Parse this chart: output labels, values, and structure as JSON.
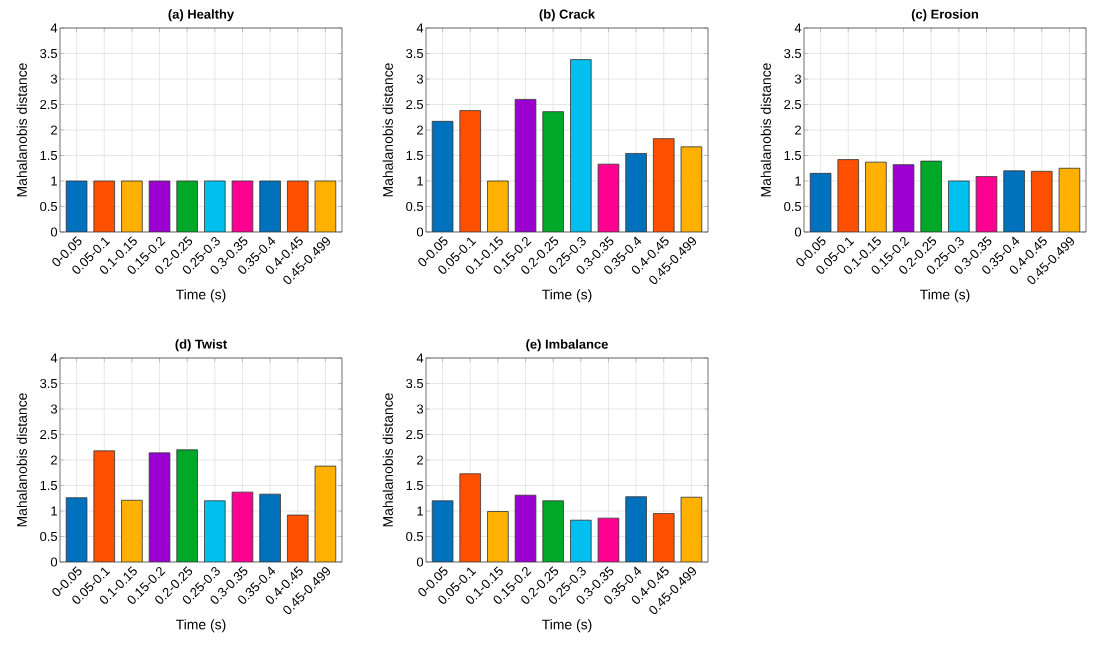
{
  "chart_data": [
    {
      "type": "bar",
      "title": "(a) Healthy",
      "xlabel": "Time (s)",
      "ylabel": "Mahalanobis distance",
      "categories": [
        "0-0.05",
        "0.05-0.1",
        "0.1-0.15",
        "0.15-0.2",
        "0.2-0.25",
        "0.25-0.3",
        "0.3-0.35",
        "0.35-0.4",
        "0.4-0.45",
        "0.45-0.499"
      ],
      "values": [
        1,
        1,
        1,
        1,
        1,
        1,
        1,
        1,
        1,
        1
      ],
      "colors": [
        "#0072bd",
        "#ff5000",
        "#ffb000",
        "#9b00d0",
        "#00a82a",
        "#00c0f0",
        "#ff0090",
        "#0072bd",
        "#ff5000",
        "#ffb000"
      ],
      "ylim": [
        0,
        4
      ],
      "yticks": [
        0,
        0.5,
        1,
        1.5,
        2,
        2.5,
        3,
        3.5,
        4
      ],
      "grid": true
    },
    {
      "type": "bar",
      "title": "(b) Crack",
      "xlabel": "Time (s)",
      "ylabel": "Mahalanobis distance",
      "categories": [
        "0-0.05",
        "0.05-0.1",
        "0.1-0.15",
        "0.15-0.2",
        "0.2-0.25",
        "0.25-0.3",
        "0.3-0.35",
        "0.35-0.4",
        "0.4-0.45",
        "0.45-0.499"
      ],
      "values": [
        2.17,
        2.38,
        1.0,
        2.6,
        2.36,
        3.38,
        1.33,
        1.54,
        1.83,
        1.67
      ],
      "colors": [
        "#0072bd",
        "#ff5000",
        "#ffb000",
        "#9b00d0",
        "#00a82a",
        "#00c0f0",
        "#ff0090",
        "#0072bd",
        "#ff5000",
        "#ffb000"
      ],
      "ylim": [
        0,
        4
      ],
      "yticks": [
        0,
        0.5,
        1,
        1.5,
        2,
        2.5,
        3,
        3.5,
        4
      ],
      "grid": true
    },
    {
      "type": "bar",
      "title": "(c) Erosion",
      "xlabel": "Time (s)",
      "ylabel": "Mahalanobis distance",
      "categories": [
        "0-0.05",
        "0.05-0.1",
        "0.1-0.15",
        "0.15-0.2",
        "0.2-0.25",
        "0.25-0.3",
        "0.3-0.35",
        "0.35-0.4",
        "0.4-0.45",
        "0.45-0.499"
      ],
      "values": [
        1.15,
        1.42,
        1.37,
        1.32,
        1.39,
        1.0,
        1.09,
        1.2,
        1.19,
        1.25
      ],
      "colors": [
        "#0072bd",
        "#ff5000",
        "#ffb000",
        "#9b00d0",
        "#00a82a",
        "#00c0f0",
        "#ff0090",
        "#0072bd",
        "#ff5000",
        "#ffb000"
      ],
      "ylim": [
        0,
        4
      ],
      "yticks": [
        0,
        0.5,
        1,
        1.5,
        2,
        2.5,
        3,
        3.5,
        4
      ],
      "grid": true
    },
    {
      "type": "bar",
      "title": "(d) Twist",
      "xlabel": "Time (s)",
      "ylabel": "Mahalanobis distance",
      "categories": [
        "0-0.05",
        "0.05-0.1",
        "0.1-0.15",
        "0.15-0.2",
        "0.2-0.25",
        "0.25-0.3",
        "0.3-0.35",
        "0.35-0.4",
        "0.4-0.45",
        "0.45-0.499"
      ],
      "values": [
        1.26,
        2.18,
        1.21,
        2.14,
        2.2,
        1.2,
        1.37,
        1.33,
        0.92,
        1.88
      ],
      "colors": [
        "#0072bd",
        "#ff5000",
        "#ffb000",
        "#9b00d0",
        "#00a82a",
        "#00c0f0",
        "#ff0090",
        "#0072bd",
        "#ff5000",
        "#ffb000"
      ],
      "ylim": [
        0,
        4
      ],
      "yticks": [
        0,
        0.5,
        1,
        1.5,
        2,
        2.5,
        3,
        3.5,
        4
      ],
      "grid": true
    },
    {
      "type": "bar",
      "title": "(e) Imbalance",
      "xlabel": "Time (s)",
      "ylabel": "Mahalanobis distance",
      "categories": [
        "0-0.05",
        "0.05-0.1",
        "0.1-0.15",
        "0.15-0.2",
        "0.2-0.25",
        "0.25-0.3",
        "0.3-0.35",
        "0.35-0.4",
        "0.4-0.45",
        "0.45-0.499"
      ],
      "values": [
        1.2,
        1.73,
        0.99,
        1.31,
        1.2,
        0.82,
        0.86,
        1.28,
        0.95,
        1.27
      ],
      "colors": [
        "#0072bd",
        "#ff5000",
        "#ffb000",
        "#9b00d0",
        "#00a82a",
        "#00c0f0",
        "#ff0090",
        "#0072bd",
        "#ff5000",
        "#ffb000"
      ],
      "ylim": [
        0,
        4
      ],
      "yticks": [
        0,
        0.5,
        1,
        1.5,
        2,
        2.5,
        3,
        3.5,
        4
      ],
      "grid": true
    }
  ]
}
